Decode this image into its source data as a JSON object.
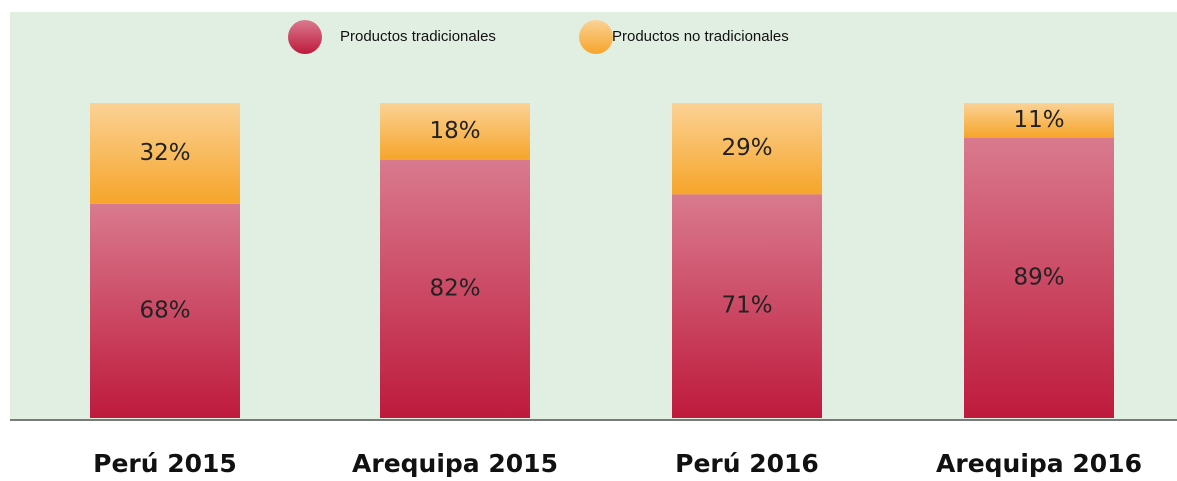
{
  "chart_data": {
    "type": "stacked_bar",
    "categories": [
      "Perú 2015",
      "Arequipa 2015",
      "Perú 2016",
      "Arequipa 2016"
    ],
    "series": [
      {
        "name": "Productos tradicionales",
        "color": "#be1a3c",
        "values": [
          68,
          82,
          71,
          89
        ],
        "value_labels": [
          "68%",
          "82%",
          "71%",
          "89%"
        ]
      },
      {
        "name": "Productos no tradicionales",
        "color": "#f6a52a",
        "values": [
          32,
          18,
          29,
          11
        ],
        "value_labels": [
          "32%",
          "18%",
          "29%",
          "11%"
        ]
      }
    ],
    "ylim": [
      0,
      100
    ],
    "legend": "top"
  }
}
